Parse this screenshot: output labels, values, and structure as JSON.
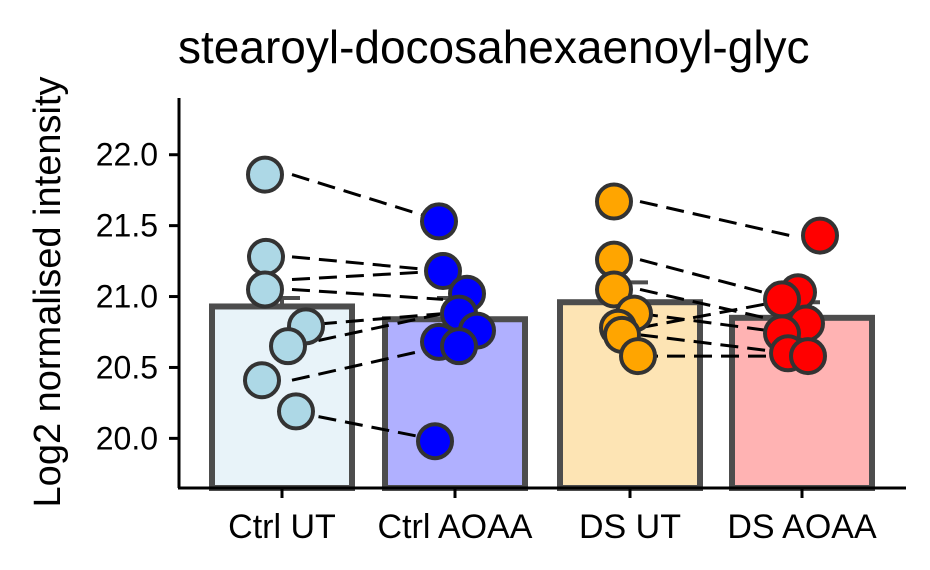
{
  "chart_data": {
    "type": "bar",
    "title": "stearoyl-docosahexaenoyl-glyc",
    "xlabel": "",
    "ylabel": "Log2 normalised intensity",
    "ylim": [
      19.65,
      22.4
    ],
    "yticks": [
      20.0,
      20.5,
      21.0,
      21.5,
      22.0
    ],
    "ytick_labels": [
      "20.0",
      "20.5",
      "21.0",
      "21.5",
      "22.0"
    ],
    "grid": false,
    "legend": "none",
    "categories": [
      "Ctrl UT",
      "Ctrl AOAA",
      "DS UT",
      "DS AOAA"
    ],
    "values": [
      20.93,
      20.84,
      20.96,
      20.85
    ],
    "error_upper": [
      20.99,
      20.99,
      21.1,
      20.96
    ],
    "colors": {
      "fill": [
        "#e8f3f9",
        "#b0b0ff",
        "#fde4b4",
        "#ffb3b3"
      ],
      "point": [
        "#add8e6",
        "#0000ff",
        "#ffa500",
        "#ff0000"
      ],
      "outline": "#4d4d4d"
    },
    "points": [
      [
        21.86,
        21.28,
        21.05,
        20.79,
        20.65,
        20.41,
        20.19
      ],
      [
        21.53,
        21.18,
        21.02,
        20.88,
        20.76,
        20.68,
        20.65,
        19.98
      ],
      [
        21.67,
        21.26,
        21.05,
        20.88,
        20.78,
        20.73,
        20.58
      ],
      [
        21.43,
        21.03,
        20.98,
        20.81,
        20.74,
        20.6,
        20.58
      ]
    ],
    "pairs": [
      [
        21.86,
        21.53
      ],
      [
        21.28,
        21.18
      ],
      [
        21.12,
        21.18
      ],
      [
        21.05,
        20.98
      ],
      [
        20.79,
        20.88
      ],
      [
        20.65,
        20.88
      ],
      [
        20.41,
        20.65
      ],
      [
        20.19,
        19.98
      ],
      [
        21.67,
        21.43
      ],
      [
        21.26,
        20.98
      ],
      [
        21.05,
        20.81
      ],
      [
        20.88,
        20.74
      ],
      [
        20.78,
        20.98
      ],
      [
        20.73,
        20.6
      ],
      [
        20.58,
        20.58
      ]
    ],
    "pair_groups": [
      [
        0,
        1
      ],
      [
        0,
        1
      ],
      [
        0,
        1
      ],
      [
        0,
        1
      ],
      [
        0,
        1
      ],
      [
        0,
        1
      ],
      [
        0,
        1
      ],
      [
        0,
        1
      ],
      [
        2,
        3
      ],
      [
        2,
        3
      ],
      [
        2,
        3
      ],
      [
        2,
        3
      ],
      [
        2,
        3
      ],
      [
        2,
        3
      ],
      [
        2,
        3
      ]
    ]
  }
}
